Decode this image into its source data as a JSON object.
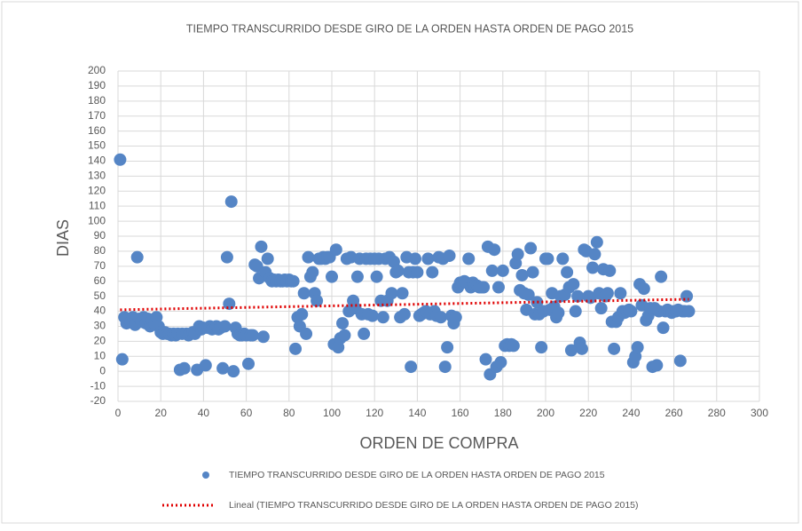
{
  "chart_data": {
    "type": "scatter",
    "title": "TIEMPO TRANSCURRIDO  DESDE GIRO DE LA ORDEN HASTA ORDEN DE PAGO 2015",
    "x_label": "ORDEN DE COMPRA",
    "y_label": "DIAS",
    "xlim": [
      0,
      300
    ],
    "xticks": [
      0,
      20,
      40,
      60,
      80,
      100,
      120,
      140,
      160,
      180,
      200,
      220,
      240,
      260,
      280,
      300
    ],
    "ylim": [
      -20,
      200
    ],
    "yticks": [
      -20,
      -10,
      0,
      10,
      20,
      30,
      40,
      50,
      60,
      70,
      80,
      90,
      100,
      110,
      120,
      130,
      140,
      150,
      160,
      170,
      180,
      190,
      200
    ],
    "grid": true,
    "legend": "bottom",
    "series": [
      {
        "name": "TIEMPO TRANSCURRIDO  DESDE GIRO DE LA ORDEN HASTA ORDEN DE PAGO 2015",
        "type": "scatter",
        "color": "#5585c5",
        "x": [
          1,
          2,
          3,
          4,
          5,
          6,
          7,
          8,
          9,
          10,
          11,
          12,
          13,
          14,
          15,
          16,
          17,
          18,
          19,
          20,
          21,
          22,
          23,
          24,
          25,
          26,
          27,
          28,
          29,
          30,
          31,
          32,
          33,
          34,
          35,
          36,
          37,
          38,
          39,
          40,
          41,
          42,
          43,
          44,
          45,
          46,
          47,
          48,
          49,
          50,
          51,
          52,
          53,
          54,
          55,
          56,
          57,
          58,
          59,
          60,
          61,
          62,
          63,
          64,
          65,
          66,
          67,
          68,
          69,
          70,
          71,
          72,
          73,
          74,
          75,
          76,
          77,
          78,
          79,
          80,
          81,
          82,
          83,
          84,
          85,
          86,
          87,
          88,
          89,
          90,
          91,
          92,
          93,
          94,
          95,
          96,
          97,
          98,
          99,
          100,
          101,
          102,
          103,
          104,
          105,
          106,
          107,
          108,
          109,
          110,
          111,
          112,
          113,
          114,
          115,
          116,
          117,
          118,
          119,
          120,
          121,
          122,
          123,
          124,
          125,
          126,
          127,
          128,
          129,
          130,
          131,
          132,
          133,
          134,
          135,
          136,
          137,
          138,
          139,
          140,
          141,
          142,
          143,
          144,
          145,
          146,
          147,
          148,
          149,
          150,
          151,
          152,
          153,
          154,
          155,
          156,
          157,
          158,
          159,
          160,
          161,
          162,
          163,
          164,
          165,
          166,
          167,
          168,
          169,
          170,
          171,
          172,
          173,
          174,
          175,
          176,
          177,
          178,
          179,
          180,
          181,
          182,
          183,
          184,
          185,
          186,
          187,
          188,
          189,
          190,
          191,
          192,
          193,
          194,
          195,
          196,
          197,
          198,
          199,
          200,
          201,
          202,
          203,
          204,
          205,
          206,
          207,
          208,
          209,
          210,
          211,
          212,
          213,
          214,
          215,
          216,
          217,
          218,
          219,
          220,
          221,
          222,
          223,
          224,
          225,
          226,
          227,
          228,
          229,
          230,
          231,
          232,
          233,
          234,
          235,
          236,
          237,
          238,
          239,
          240,
          241,
          242,
          243,
          244,
          245,
          246,
          247,
          248,
          249,
          250,
          251,
          252,
          253,
          254,
          255,
          256,
          257,
          258,
          259,
          260,
          261,
          262,
          263,
          264,
          265,
          266,
          267
        ],
        "values": [
          141,
          8,
          36,
          32,
          35,
          33,
          36,
          31,
          76,
          35,
          33,
          36,
          32,
          35,
          30,
          34,
          32,
          36,
          30,
          26,
          25,
          26,
          25,
          25,
          24,
          25,
          24,
          25,
          1,
          25,
          2,
          25,
          24,
          25,
          26,
          25,
          1,
          30,
          28,
          29,
          4,
          29,
          30,
          28,
          29,
          30,
          28,
          29,
          2,
          30,
          76,
          45,
          113,
          0,
          29,
          25,
          24,
          24,
          25,
          24,
          5,
          24,
          24,
          71,
          70,
          62,
          83,
          23,
          66,
          75,
          62,
          60,
          61,
          60,
          61,
          60,
          60,
          61,
          60,
          61,
          60,
          60,
          15,
          36,
          30,
          38,
          52,
          25,
          76,
          63,
          66,
          52,
          47,
          75,
          75,
          76,
          75,
          76,
          76,
          63,
          18,
          81,
          16,
          22,
          32,
          24,
          75,
          40,
          76,
          47,
          42,
          63,
          75,
          38,
          25,
          75,
          38,
          75,
          37,
          75,
          63,
          75,
          47,
          36,
          75,
          47,
          76,
          52,
          73,
          66,
          67,
          36,
          52,
          38,
          76,
          66,
          3,
          66,
          75,
          66,
          37,
          38,
          39,
          40,
          75,
          38,
          66,
          40,
          37,
          76,
          36,
          75,
          3,
          16,
          77,
          37,
          32,
          36,
          56,
          59,
          59,
          60,
          59,
          75,
          56,
          59,
          57,
          57,
          56,
          56,
          56,
          8,
          83,
          -2,
          67,
          81,
          3,
          56,
          6,
          67,
          17,
          18,
          17,
          18,
          17,
          72,
          78,
          54,
          64,
          52,
          41,
          51,
          82,
          66,
          38,
          46,
          38,
          16,
          40,
          75,
          75,
          41,
          52,
          43,
          36,
          39,
          50,
          75,
          51,
          66,
          56,
          14,
          58,
          40,
          50,
          19,
          15,
          81,
          80,
          50,
          49,
          69,
          78,
          86,
          52,
          42,
          68,
          50,
          52,
          67,
          33,
          15,
          33,
          36,
          52,
          40,
          39,
          40,
          41,
          40,
          6,
          10,
          16,
          58,
          44,
          55,
          34,
          37,
          42,
          3,
          42,
          4,
          40,
          63,
          29,
          40,
          41,
          40,
          39,
          40,
          40,
          41,
          7,
          40,
          40,
          50,
          40
        ]
      },
      {
        "name": "Lineal (TIEMPO TRANSCURRIDO  DESDE GIRO DE LA ORDEN HASTA ORDEN DE PAGO 2015)",
        "type": "line",
        "line_style": "dotted",
        "color": "#e00000",
        "x": [
          1,
          267
        ],
        "values": [
          41,
          48
        ]
      }
    ]
  }
}
